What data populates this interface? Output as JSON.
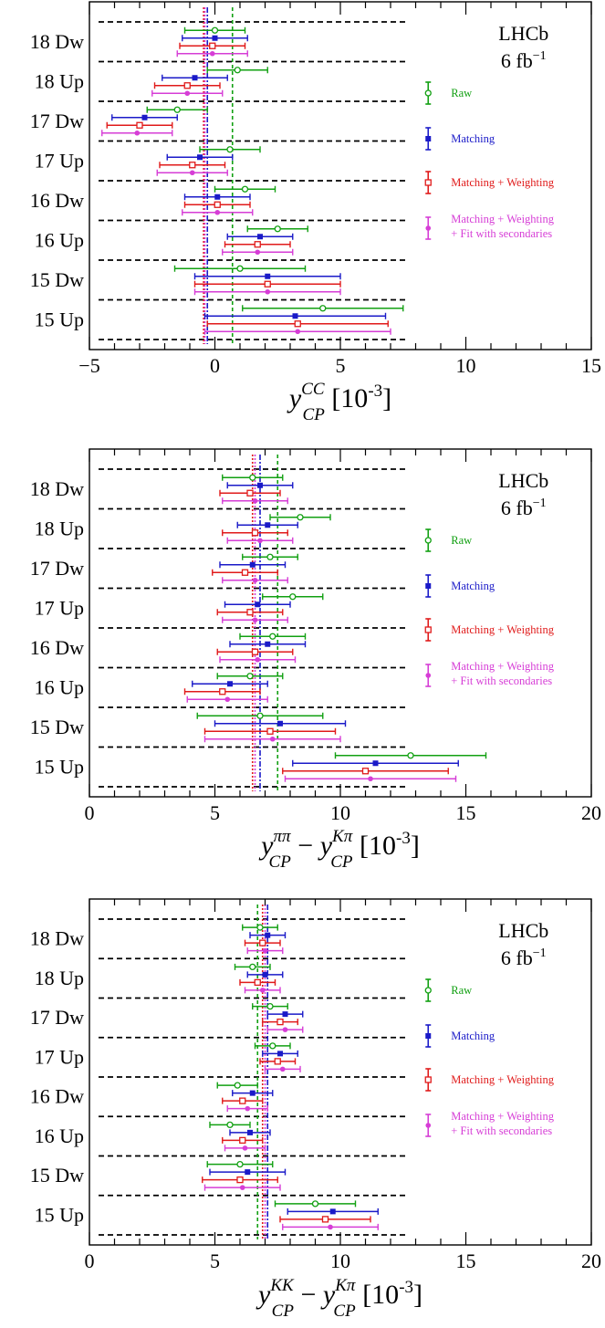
{
  "chart_data": [
    {
      "type": "scatter",
      "orientation": "horizontal-error-bars",
      "xlabel_parts": {
        "main": "y",
        "sup": "CC",
        "sub": "CP",
        "unit": "[10",
        "unit_exp": "-3",
        "unit_close": "]"
      },
      "xlim": [
        -5,
        15
      ],
      "xticks": [
        -5,
        0,
        5,
        10,
        15
      ],
      "tick_labels": [
        "−5",
        "0",
        "5",
        "10",
        "15"
      ],
      "categories": [
        "18 Dw",
        "18 Up",
        "17 Dw",
        "17 Up",
        "16 Dw",
        "16 Up",
        "15 Dw",
        "15 Up"
      ],
      "annotation": {
        "line1": "LHCb",
        "line2_main": "6 fb",
        "line2_exp": "−1"
      },
      "reference_lines": {
        "Raw": 0.7,
        "Matching": -0.3,
        "Matching + Weighting": -0.45,
        "Matching + Weighting + Fit with secondaries": -0.4
      },
      "series": [
        {
          "name": "Raw",
          "values": [
            0.0,
            0.9,
            -1.5,
            0.6,
            1.2,
            2.5,
            1.0,
            4.3
          ],
          "errors": [
            1.2,
            1.2,
            1.2,
            1.2,
            1.2,
            1.2,
            2.6,
            3.2
          ]
        },
        {
          "name": "Matching",
          "values": [
            0.0,
            -0.8,
            -2.8,
            -0.6,
            0.1,
            1.8,
            2.1,
            3.2
          ],
          "errors": [
            1.3,
            1.3,
            1.3,
            1.3,
            1.3,
            1.3,
            2.9,
            3.6
          ]
        },
        {
          "name": "Matching + Weighting",
          "values": [
            -0.1,
            -1.1,
            -3.0,
            -0.9,
            0.1,
            1.7,
            2.1,
            3.3
          ],
          "errors": [
            1.3,
            1.3,
            1.3,
            1.3,
            1.3,
            1.3,
            2.9,
            3.6
          ]
        },
        {
          "name": "Matching + Weighting + Fit with secondaries",
          "values": [
            -0.1,
            -1.1,
            -3.1,
            -0.9,
            0.1,
            1.7,
            2.1,
            3.3
          ],
          "errors": [
            1.4,
            1.4,
            1.4,
            1.4,
            1.4,
            1.4,
            2.9,
            3.7
          ]
        }
      ]
    },
    {
      "type": "scatter",
      "orientation": "horizontal-error-bars",
      "xlabel_parts": {
        "main": "y",
        "sup": "ππ",
        "sub": "CP",
        "minus": "−",
        "main2": "y",
        "sup2": "Kπ",
        "sub2": "CP",
        "unit": "[10",
        "unit_exp": "-3",
        "unit_close": "]"
      },
      "xlim": [
        0,
        20
      ],
      "xticks": [
        0,
        5,
        10,
        15,
        20
      ],
      "tick_labels": [
        "0",
        "5",
        "10",
        "15",
        "20"
      ],
      "categories": [
        "18 Dw",
        "18 Up",
        "17 Dw",
        "17 Up",
        "16 Dw",
        "16 Up",
        "15 Dw",
        "15 Up"
      ],
      "annotation": {
        "line1": "LHCb",
        "line2_main": "6 fb",
        "line2_exp": "−1"
      },
      "reference_lines": {
        "Raw": 7.5,
        "Matching": 6.8,
        "Matching + Weighting": 6.5,
        "Matching + Weighting + Fit with secondaries": 6.6
      },
      "series": [
        {
          "name": "Raw",
          "values": [
            6.5,
            8.4,
            7.2,
            8.1,
            7.3,
            6.4,
            6.8,
            12.8
          ],
          "errors": [
            1.2,
            1.2,
            1.1,
            1.2,
            1.3,
            1.3,
            2.5,
            3.0
          ]
        },
        {
          "name": "Matching",
          "values": [
            6.8,
            7.1,
            6.5,
            6.7,
            7.1,
            5.6,
            7.6,
            11.4
          ],
          "errors": [
            1.3,
            1.2,
            1.3,
            1.3,
            1.5,
            1.5,
            2.6,
            3.3
          ]
        },
        {
          "name": "Matching + Weighting",
          "values": [
            6.4,
            6.6,
            6.2,
            6.4,
            6.6,
            5.3,
            7.2,
            11.0
          ],
          "errors": [
            1.2,
            1.3,
            1.3,
            1.3,
            1.5,
            1.5,
            2.6,
            3.3
          ]
        },
        {
          "name": "Matching + Weighting + Fit with secondaries",
          "values": [
            6.6,
            6.8,
            6.6,
            6.6,
            6.7,
            5.5,
            7.3,
            11.2
          ],
          "errors": [
            1.3,
            1.3,
            1.3,
            1.3,
            1.5,
            1.6,
            2.7,
            3.4
          ]
        }
      ]
    },
    {
      "type": "scatter",
      "orientation": "horizontal-error-bars",
      "xlabel_parts": {
        "main": "y",
        "sup": "KK",
        "sub": "CP",
        "minus": "−",
        "main2": "y",
        "sup2": "Kπ",
        "sub2": "CP",
        "unit": "[10",
        "unit_exp": "-3",
        "unit_close": "]"
      },
      "xlim": [
        0,
        20
      ],
      "xticks": [
        0,
        5,
        10,
        15,
        20
      ],
      "tick_labels": [
        "0",
        "5",
        "10",
        "15",
        "20"
      ],
      "categories": [
        "18 Dw",
        "18 Up",
        "17 Dw",
        "17 Up",
        "16 Dw",
        "16 Up",
        "15 Dw",
        "15 Up"
      ],
      "annotation": {
        "line1": "LHCb",
        "line2_main": "6 fb",
        "line2_exp": "−1"
      },
      "reference_lines": {
        "Raw": 6.7,
        "Matching": 7.1,
        "Matching + Weighting": 6.9,
        "Matching + Weighting + Fit with secondaries": 7.0
      },
      "series": [
        {
          "name": "Raw",
          "values": [
            6.8,
            6.5,
            7.2,
            7.3,
            5.9,
            5.6,
            6.0,
            9.0
          ],
          "errors": [
            0.7,
            0.7,
            0.7,
            0.7,
            0.8,
            0.8,
            1.3,
            1.6
          ]
        },
        {
          "name": "Matching",
          "values": [
            7.1,
            7.0,
            7.8,
            7.6,
            6.5,
            6.4,
            6.3,
            9.7
          ],
          "errors": [
            0.7,
            0.7,
            0.7,
            0.7,
            0.8,
            0.8,
            1.5,
            1.8
          ]
        },
        {
          "name": "Matching + Weighting",
          "values": [
            6.9,
            6.7,
            7.6,
            7.5,
            6.1,
            6.1,
            6.0,
            9.4
          ],
          "errors": [
            0.7,
            0.7,
            0.7,
            0.7,
            0.8,
            0.8,
            1.5,
            1.8
          ]
        },
        {
          "name": "Matching + Weighting + Fit with secondaries",
          "values": [
            7.0,
            6.9,
            7.8,
            7.7,
            6.3,
            6.2,
            6.1,
            9.6
          ],
          "errors": [
            0.7,
            0.7,
            0.7,
            0.7,
            0.8,
            0.8,
            1.5,
            1.9
          ]
        }
      ]
    }
  ],
  "colors": {
    "Raw": "#12a012",
    "Matching": "#1a1ac8",
    "Matching + Weighting": "#e01a1a",
    "Matching + Weighting + Fit with secondaries": "#d63dd6"
  },
  "legend": {
    "raw": "Raw",
    "matching": "Matching",
    "matching_weighting": "Matching + Weighting",
    "fit_line1": "Matching + Weighting",
    "fit_line2": "+ Fit with secondaries"
  }
}
